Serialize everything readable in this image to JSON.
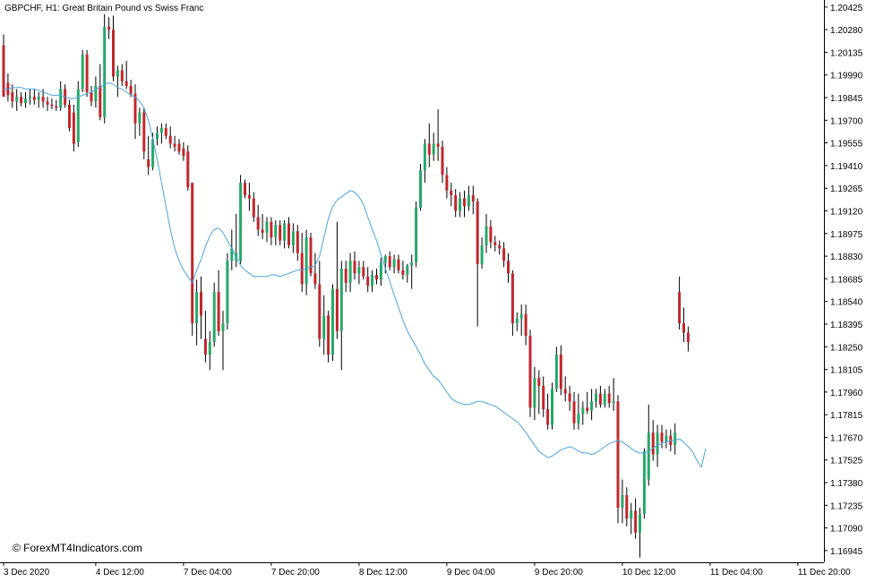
{
  "window": {
    "title": "GBPCHF, H1:  Great Britain Pound vs Swiss Franc",
    "watermark": "© ForexMT4Indicators.com"
  },
  "colors": {
    "background": "#ffffff",
    "bull": "#26a86a",
    "bear": "#c0272d",
    "wick": "#000000",
    "ma_line": "#4aa3df",
    "axis": "#000000"
  },
  "chart_data": {
    "type": "candlestick",
    "symbol": "GBPCHF",
    "timeframe": "H1",
    "grid": false,
    "ylim": [
      1.1687,
      1.2047
    ],
    "yticks": [
      "1.20425",
      "1.20280",
      "1.20135",
      "1.19990",
      "1.19845",
      "1.19700",
      "1.19555",
      "1.19410",
      "1.19265",
      "1.19120",
      "1.18975",
      "1.18830",
      "1.18685",
      "1.18540",
      "1.18395",
      "1.18250",
      "1.18105",
      "1.17960",
      "1.17815",
      "1.17670",
      "1.17525",
      "1.17380",
      "1.17235",
      "1.17090",
      "1.16945"
    ],
    "xticks": [
      {
        "label": "3 Dec 2020",
        "index": 0
      },
      {
        "label": "4 Dec 12:00",
        "index": 21
      },
      {
        "label": "7 Dec 04:00",
        "index": 41
      },
      {
        "label": "7 Dec 20:00",
        "index": 61
      },
      {
        "label": "8 Dec 12:00",
        "index": 81
      },
      {
        "label": "9 Dec 04:00",
        "index": 101
      },
      {
        "label": "9 Dec 20:00",
        "index": 121
      },
      {
        "label": "10 Dec 12:00",
        "index": 141
      },
      {
        "label": "11 Dec 04:00",
        "index": 161
      },
      {
        "label": "11 Dec 20:00",
        "index": 181
      }
    ],
    "candles": [
      {
        "o": 1.2018,
        "h": 1.2025,
        "l": 1.1985,
        "c": 1.1985
      },
      {
        "o": 1.1994,
        "h": 1.2,
        "l": 1.1982,
        "c": 1.1986
      },
      {
        "o": 1.1988,
        "h": 1.1993,
        "l": 1.1978,
        "c": 1.1982
      },
      {
        "o": 1.1982,
        "h": 1.199,
        "l": 1.1976,
        "c": 1.1985
      },
      {
        "o": 1.1985,
        "h": 1.1988,
        "l": 1.1979,
        "c": 1.1981
      },
      {
        "o": 1.1981,
        "h": 1.1988,
        "l": 1.1978,
        "c": 1.1984
      },
      {
        "o": 1.1984,
        "h": 1.199,
        "l": 1.198,
        "c": 1.1985
      },
      {
        "o": 1.1985,
        "h": 1.199,
        "l": 1.198,
        "c": 1.1983
      },
      {
        "o": 1.1983,
        "h": 1.1988,
        "l": 1.1978,
        "c": 1.1985
      },
      {
        "o": 1.1985,
        "h": 1.199,
        "l": 1.1978,
        "c": 1.1982
      },
      {
        "o": 1.1982,
        "h": 1.1985,
        "l": 1.1976,
        "c": 1.198
      },
      {
        "o": 1.198,
        "h": 1.1984,
        "l": 1.1977,
        "c": 1.1979
      },
      {
        "o": 1.1979,
        "h": 1.1983,
        "l": 1.1976,
        "c": 1.1978
      },
      {
        "o": 1.1978,
        "h": 1.1995,
        "l": 1.1976,
        "c": 1.199
      },
      {
        "o": 1.199,
        "h": 1.1993,
        "l": 1.1978,
        "c": 1.198
      },
      {
        "o": 1.198,
        "h": 1.1983,
        "l": 1.1963,
        "c": 1.1965
      },
      {
        "o": 1.1975,
        "h": 1.198,
        "l": 1.195,
        "c": 1.1955
      },
      {
        "o": 1.1956,
        "h": 1.1995,
        "l": 1.1953,
        "c": 1.199
      },
      {
        "o": 1.199,
        "h": 1.2015,
        "l": 1.1988,
        "c": 1.2012
      },
      {
        "o": 1.2012,
        "h": 1.2015,
        "l": 1.1985,
        "c": 1.1988
      },
      {
        "o": 1.1988,
        "h": 1.1992,
        "l": 1.1979,
        "c": 1.1982
      },
      {
        "o": 1.1982,
        "h": 1.1998,
        "l": 1.1978,
        "c": 1.1992
      },
      {
        "o": 1.1992,
        "h": 1.2006,
        "l": 1.197,
        "c": 1.1972
      },
      {
        "o": 1.1972,
        "h": 1.2038,
        "l": 1.1968,
        "c": 1.203
      },
      {
        "o": 1.203,
        "h": 1.2036,
        "l": 1.2022,
        "c": 1.2028
      },
      {
        "o": 1.2028,
        "h": 1.2037,
        "l": 1.1995,
        "c": 1.1998
      },
      {
        "o": 1.1998,
        "h": 1.2005,
        "l": 1.1985,
        "c": 1.2002
      },
      {
        "o": 1.2002,
        "h": 1.2006,
        "l": 1.1992,
        "c": 1.1995
      },
      {
        "o": 1.1995,
        "h": 1.2008,
        "l": 1.199,
        "c": 1.1992
      },
      {
        "o": 1.1992,
        "h": 1.1996,
        "l": 1.1985,
        "c": 1.1987
      },
      {
        "o": 1.1987,
        "h": 1.1993,
        "l": 1.1958,
        "c": 1.1968
      },
      {
        "o": 1.1968,
        "h": 1.1978,
        "l": 1.196,
        "c": 1.1975
      },
      {
        "o": 1.1975,
        "h": 1.1978,
        "l": 1.1945,
        "c": 1.195
      },
      {
        "o": 1.1945,
        "h": 1.196,
        "l": 1.1935,
        "c": 1.194
      },
      {
        "o": 1.194,
        "h": 1.1962,
        "l": 1.1938,
        "c": 1.1958
      },
      {
        "o": 1.1958,
        "h": 1.1966,
        "l": 1.1954,
        "c": 1.1962
      },
      {
        "o": 1.1962,
        "h": 1.1968,
        "l": 1.1955,
        "c": 1.1965
      },
      {
        "o": 1.1965,
        "h": 1.1968,
        "l": 1.1958,
        "c": 1.196
      },
      {
        "o": 1.196,
        "h": 1.1966,
        "l": 1.1952,
        "c": 1.1955
      },
      {
        "o": 1.1955,
        "h": 1.196,
        "l": 1.195,
        "c": 1.1953
      },
      {
        "o": 1.1955,
        "h": 1.1958,
        "l": 1.1948,
        "c": 1.195
      },
      {
        "o": 1.1952,
        "h": 1.1956,
        "l": 1.1944,
        "c": 1.1947
      },
      {
        "o": 1.195,
        "h": 1.1954,
        "l": 1.1925,
        "c": 1.1927
      },
      {
        "o": 1.193,
        "h": 1.193,
        "l": 1.1832,
        "c": 1.184
      },
      {
        "o": 1.184,
        "h": 1.1868,
        "l": 1.1826,
        "c": 1.186
      },
      {
        "o": 1.186,
        "h": 1.187,
        "l": 1.183,
        "c": 1.1845
      },
      {
        "o": 1.183,
        "h": 1.1848,
        "l": 1.1815,
        "c": 1.182
      },
      {
        "o": 1.182,
        "h": 1.1835,
        "l": 1.181,
        "c": 1.1828
      },
      {
        "o": 1.1828,
        "h": 1.1866,
        "l": 1.1825,
        "c": 1.186
      },
      {
        "o": 1.186,
        "h": 1.1874,
        "l": 1.1832,
        "c": 1.1835
      },
      {
        "o": 1.1835,
        "h": 1.1848,
        "l": 1.181,
        "c": 1.184
      },
      {
        "o": 1.184,
        "h": 1.1885,
        "l": 1.1836,
        "c": 1.188
      },
      {
        "o": 1.188,
        "h": 1.19,
        "l": 1.1874,
        "c": 1.1888
      },
      {
        "o": 1.188,
        "h": 1.191,
        "l": 1.1876,
        "c": 1.1885
      },
      {
        "o": 1.188,
        "h": 1.1935,
        "l": 1.1878,
        "c": 1.193
      },
      {
        "o": 1.193,
        "h": 1.1932,
        "l": 1.192,
        "c": 1.1922
      },
      {
        "o": 1.1922,
        "h": 1.193,
        "l": 1.1912,
        "c": 1.192
      },
      {
        "o": 1.192,
        "h": 1.1924,
        "l": 1.1905,
        "c": 1.1908
      },
      {
        "o": 1.1908,
        "h": 1.1916,
        "l": 1.1896,
        "c": 1.19
      },
      {
        "o": 1.19,
        "h": 1.191,
        "l": 1.1894,
        "c": 1.1898
      },
      {
        "o": 1.1898,
        "h": 1.1908,
        "l": 1.1892,
        "c": 1.1905
      },
      {
        "o": 1.1905,
        "h": 1.1908,
        "l": 1.189,
        "c": 1.1895
      },
      {
        "o": 1.1895,
        "h": 1.1906,
        "l": 1.189,
        "c": 1.1903
      },
      {
        "o": 1.1903,
        "h": 1.1906,
        "l": 1.189,
        "c": 1.1893
      },
      {
        "o": 1.1893,
        "h": 1.1906,
        "l": 1.1888,
        "c": 1.1904
      },
      {
        "o": 1.1904,
        "h": 1.1908,
        "l": 1.1888,
        "c": 1.189
      },
      {
        "o": 1.189,
        "h": 1.1904,
        "l": 1.1885,
        "c": 1.1899
      },
      {
        "o": 1.1899,
        "h": 1.1903,
        "l": 1.188,
        "c": 1.1885
      },
      {
        "o": 1.1885,
        "h": 1.1898,
        "l": 1.186,
        "c": 1.1865
      },
      {
        "o": 1.1865,
        "h": 1.19,
        "l": 1.1858,
        "c": 1.1895
      },
      {
        "o": 1.1895,
        "h": 1.1898,
        "l": 1.187,
        "c": 1.1872
      },
      {
        "o": 1.1872,
        "h": 1.1885,
        "l": 1.1862,
        "c": 1.1865
      },
      {
        "o": 1.1865,
        "h": 1.188,
        "l": 1.1825,
        "c": 1.183
      },
      {
        "o": 1.183,
        "h": 1.1858,
        "l": 1.182,
        "c": 1.1845
      },
      {
        "o": 1.1845,
        "h": 1.1848,
        "l": 1.1815,
        "c": 1.182
      },
      {
        "o": 1.182,
        "h": 1.1865,
        "l": 1.1816,
        "c": 1.1862
      },
      {
        "o": 1.1862,
        "h": 1.1905,
        "l": 1.183,
        "c": 1.1835
      },
      {
        "o": 1.1835,
        "h": 1.188,
        "l": 1.181,
        "c": 1.1875
      },
      {
        "o": 1.1875,
        "h": 1.188,
        "l": 1.186,
        "c": 1.1866
      },
      {
        "o": 1.1866,
        "h": 1.1885,
        "l": 1.186,
        "c": 1.188
      },
      {
        "o": 1.188,
        "h": 1.1886,
        "l": 1.1868,
        "c": 1.1872
      },
      {
        "o": 1.1872,
        "h": 1.188,
        "l": 1.1865,
        "c": 1.1876
      },
      {
        "o": 1.1876,
        "h": 1.188,
        "l": 1.1868,
        "c": 1.187
      },
      {
        "o": 1.187,
        "h": 1.1876,
        "l": 1.186,
        "c": 1.1864
      },
      {
        "o": 1.1864,
        "h": 1.1874,
        "l": 1.186,
        "c": 1.1871
      },
      {
        "o": 1.1871,
        "h": 1.1875,
        "l": 1.1865,
        "c": 1.1868
      },
      {
        "o": 1.1868,
        "h": 1.1882,
        "l": 1.1864,
        "c": 1.1879
      },
      {
        "o": 1.1879,
        "h": 1.1884,
        "l": 1.1872,
        "c": 1.1883
      },
      {
        "o": 1.1883,
        "h": 1.1886,
        "l": 1.1874,
        "c": 1.1876
      },
      {
        "o": 1.1876,
        "h": 1.1884,
        "l": 1.1872,
        "c": 1.1881
      },
      {
        "o": 1.1881,
        "h": 1.1884,
        "l": 1.1872,
        "c": 1.1874
      },
      {
        "o": 1.1874,
        "h": 1.188,
        "l": 1.1868,
        "c": 1.1871
      },
      {
        "o": 1.1871,
        "h": 1.1878,
        "l": 1.1866,
        "c": 1.1877
      },
      {
        "o": 1.1877,
        "h": 1.1884,
        "l": 1.1862,
        "c": 1.1879
      },
      {
        "o": 1.1879,
        "h": 1.1918,
        "l": 1.1876,
        "c": 1.1914
      },
      {
        "o": 1.1914,
        "h": 1.1942,
        "l": 1.1912,
        "c": 1.1938
      },
      {
        "o": 1.1938,
        "h": 1.1958,
        "l": 1.193,
        "c": 1.1955
      },
      {
        "o": 1.1955,
        "h": 1.1968,
        "l": 1.194,
        "c": 1.1948
      },
      {
        "o": 1.1948,
        "h": 1.1962,
        "l": 1.1944,
        "c": 1.1955
      },
      {
        "o": 1.1955,
        "h": 1.1977,
        "l": 1.1944,
        "c": 1.1953
      },
      {
        "o": 1.1953,
        "h": 1.1957,
        "l": 1.193,
        "c": 1.1935
      },
      {
        "o": 1.1935,
        "h": 1.194,
        "l": 1.192,
        "c": 1.1925
      },
      {
        "o": 1.1925,
        "h": 1.193,
        "l": 1.1915,
        "c": 1.1922
      },
      {
        "o": 1.1922,
        "h": 1.1926,
        "l": 1.1908,
        "c": 1.1912
      },
      {
        "o": 1.1912,
        "h": 1.1924,
        "l": 1.1908,
        "c": 1.192
      },
      {
        "o": 1.192,
        "h": 1.1925,
        "l": 1.1908,
        "c": 1.1915
      },
      {
        "o": 1.1915,
        "h": 1.1928,
        "l": 1.1912,
        "c": 1.1922
      },
      {
        "o": 1.1922,
        "h": 1.1928,
        "l": 1.191,
        "c": 1.1918
      },
      {
        "o": 1.1918,
        "h": 1.192,
        "l": 1.1838,
        "c": 1.1878
      },
      {
        "o": 1.1878,
        "h": 1.1895,
        "l": 1.1875,
        "c": 1.189
      },
      {
        "o": 1.189,
        "h": 1.191,
        "l": 1.1885,
        "c": 1.1902
      },
      {
        "o": 1.1902,
        "h": 1.1906,
        "l": 1.1888,
        "c": 1.1892
      },
      {
        "o": 1.1892,
        "h": 1.1896,
        "l": 1.1886,
        "c": 1.189
      },
      {
        "o": 1.189,
        "h": 1.1893,
        "l": 1.1884,
        "c": 1.1888
      },
      {
        "o": 1.1888,
        "h": 1.1892,
        "l": 1.1876,
        "c": 1.188
      },
      {
        "o": 1.188,
        "h": 1.1885,
        "l": 1.1866,
        "c": 1.1872
      },
      {
        "o": 1.1872,
        "h": 1.1874,
        "l": 1.1832,
        "c": 1.184
      },
      {
        "o": 1.184,
        "h": 1.1847,
        "l": 1.1835,
        "c": 1.1843
      },
      {
        "o": 1.1843,
        "h": 1.1852,
        "l": 1.1832,
        "c": 1.1846
      },
      {
        "o": 1.1846,
        "h": 1.1852,
        "l": 1.1826,
        "c": 1.1832
      },
      {
        "o": 1.1832,
        "h": 1.1836,
        "l": 1.178,
        "c": 1.1786
      },
      {
        "o": 1.1786,
        "h": 1.1812,
        "l": 1.1778,
        "c": 1.1805
      },
      {
        "o": 1.1805,
        "h": 1.181,
        "l": 1.1782,
        "c": 1.18
      },
      {
        "o": 1.18,
        "h": 1.1806,
        "l": 1.178,
        "c": 1.1785
      },
      {
        "o": 1.1785,
        "h": 1.1795,
        "l": 1.1772,
        "c": 1.1775
      },
      {
        "o": 1.1775,
        "h": 1.1802,
        "l": 1.1772,
        "c": 1.1798
      },
      {
        "o": 1.1798,
        "h": 1.1825,
        "l": 1.1796,
        "c": 1.182
      },
      {
        "o": 1.182,
        "h": 1.1826,
        "l": 1.1794,
        "c": 1.1798
      },
      {
        "o": 1.1798,
        "h": 1.1806,
        "l": 1.179,
        "c": 1.1795
      },
      {
        "o": 1.1795,
        "h": 1.18,
        "l": 1.1784,
        "c": 1.179
      },
      {
        "o": 1.179,
        "h": 1.1796,
        "l": 1.1772,
        "c": 1.1776
      },
      {
        "o": 1.1776,
        "h": 1.1795,
        "l": 1.1772,
        "c": 1.1782
      },
      {
        "o": 1.1782,
        "h": 1.179,
        "l": 1.1775,
        "c": 1.1786
      },
      {
        "o": 1.1786,
        "h": 1.1796,
        "l": 1.1782,
        "c": 1.1784
      },
      {
        "o": 1.1784,
        "h": 1.1798,
        "l": 1.1778,
        "c": 1.179
      },
      {
        "o": 1.179,
        "h": 1.1798,
        "l": 1.1786,
        "c": 1.1795
      },
      {
        "o": 1.1795,
        "h": 1.18,
        "l": 1.1786,
        "c": 1.1788
      },
      {
        "o": 1.1788,
        "h": 1.1798,
        "l": 1.1786,
        "c": 1.1795
      },
      {
        "o": 1.1795,
        "h": 1.18,
        "l": 1.1786,
        "c": 1.1789
      },
      {
        "o": 1.1789,
        "h": 1.1805,
        "l": 1.1784,
        "c": 1.179
      },
      {
        "o": 1.179,
        "h": 1.1794,
        "l": 1.1712,
        "c": 1.1722
      },
      {
        "o": 1.1722,
        "h": 1.174,
        "l": 1.1712,
        "c": 1.173
      },
      {
        "o": 1.173,
        "h": 1.1735,
        "l": 1.171,
        "c": 1.1715
      },
      {
        "o": 1.1715,
        "h": 1.1725,
        "l": 1.1705,
        "c": 1.172
      },
      {
        "o": 1.172,
        "h": 1.1728,
        "l": 1.1702,
        "c": 1.1706
      },
      {
        "o": 1.1706,
        "h": 1.1722,
        "l": 1.169,
        "c": 1.1718
      },
      {
        "o": 1.1718,
        "h": 1.176,
        "l": 1.1715,
        "c": 1.1758
      },
      {
        "o": 1.174,
        "h": 1.1788,
        "l": 1.1736,
        "c": 1.177
      },
      {
        "o": 1.177,
        "h": 1.1778,
        "l": 1.1752,
        "c": 1.1756
      },
      {
        "o": 1.1756,
        "h": 1.1775,
        "l": 1.1748,
        "c": 1.177
      },
      {
        "o": 1.177,
        "h": 1.1775,
        "l": 1.176,
        "c": 1.1764
      },
      {
        "o": 1.1764,
        "h": 1.1772,
        "l": 1.176,
        "c": 1.1768
      },
      {
        "o": 1.1768,
        "h": 1.1772,
        "l": 1.1758,
        "c": 1.1762
      },
      {
        "o": 1.1762,
        "h": 1.1776,
        "l": 1.1756,
        "c": 1.177
      },
      {
        "o": 1.186,
        "h": 1.187,
        "l": 1.1836,
        "c": 1.184
      },
      {
        "o": 1.184,
        "h": 1.185,
        "l": 1.1828,
        "c": 1.1834
      },
      {
        "o": 1.1834,
        "h": 1.1838,
        "l": 1.1822,
        "c": 1.1828
      }
    ],
    "ma": [
      1.199,
      1.199,
      1.1991,
      1.1991,
      1.1991,
      1.199,
      1.199,
      1.199,
      1.1989,
      1.1988,
      1.1987,
      1.1986,
      1.1986,
      1.1986,
      1.1985,
      1.1984,
      1.1984,
      1.1985,
      1.1986,
      1.1987,
      1.1988,
      1.199,
      1.1991,
      1.1993,
      1.1994,
      1.1993,
      1.1991,
      1.199,
      1.1988,
      1.1986,
      1.1985,
      1.1982,
      1.1978,
      1.197,
      1.1958,
      1.1945,
      1.193,
      1.1915,
      1.19,
      1.1888,
      1.188,
      1.1874,
      1.187,
      1.1866,
      1.1874,
      1.1881,
      1.1889,
      1.1896,
      1.19,
      1.1901,
      1.1898,
      1.1893,
      1.1888,
      1.1882,
      1.1877,
      1.1874,
      1.1872,
      1.187,
      1.187,
      1.187,
      1.187,
      1.1871,
      1.1871,
      1.187,
      1.1871,
      1.1872,
      1.1873,
      1.1874,
      1.1874,
      1.1875,
      1.1876,
      1.1877,
      1.1883,
      1.1895,
      1.1907,
      1.1915,
      1.1919,
      1.1921,
      1.1923,
      1.1925,
      1.1924,
      1.1921,
      1.1916,
      1.1908,
      1.19,
      1.1893,
      1.1884,
      1.1875,
      1.1867,
      1.1858,
      1.185,
      1.1842,
      1.1835,
      1.183,
      1.1825,
      1.182,
      1.1814,
      1.181,
      1.1806,
      1.1804,
      1.18,
      1.1796,
      1.1792,
      1.179,
      1.1789,
      1.1788,
      1.1788,
      1.1789,
      1.179,
      1.179,
      1.1789,
      1.1788,
      1.1787,
      1.1785,
      1.1783,
      1.1781,
      1.1779,
      1.1777,
      1.1774,
      1.177,
      1.1766,
      1.1762,
      1.1758,
      1.1756,
      1.1754,
      1.1755,
      1.1757,
      1.1759,
      1.176,
      1.1761,
      1.176,
      1.1758,
      1.1757,
      1.1757,
      1.1756,
      1.1757,
      1.1759,
      1.1761,
      1.1763,
      1.1764,
      1.1765,
      1.1764,
      1.1762,
      1.176,
      1.1758,
      1.1757,
      1.1757,
      1.1758,
      1.176,
      1.1762,
      1.1763,
      1.1764,
      1.1765,
      1.1765,
      1.1766,
      1.1764,
      1.1761,
      1.1758,
      1.1752,
      1.1748,
      1.176
    ]
  }
}
